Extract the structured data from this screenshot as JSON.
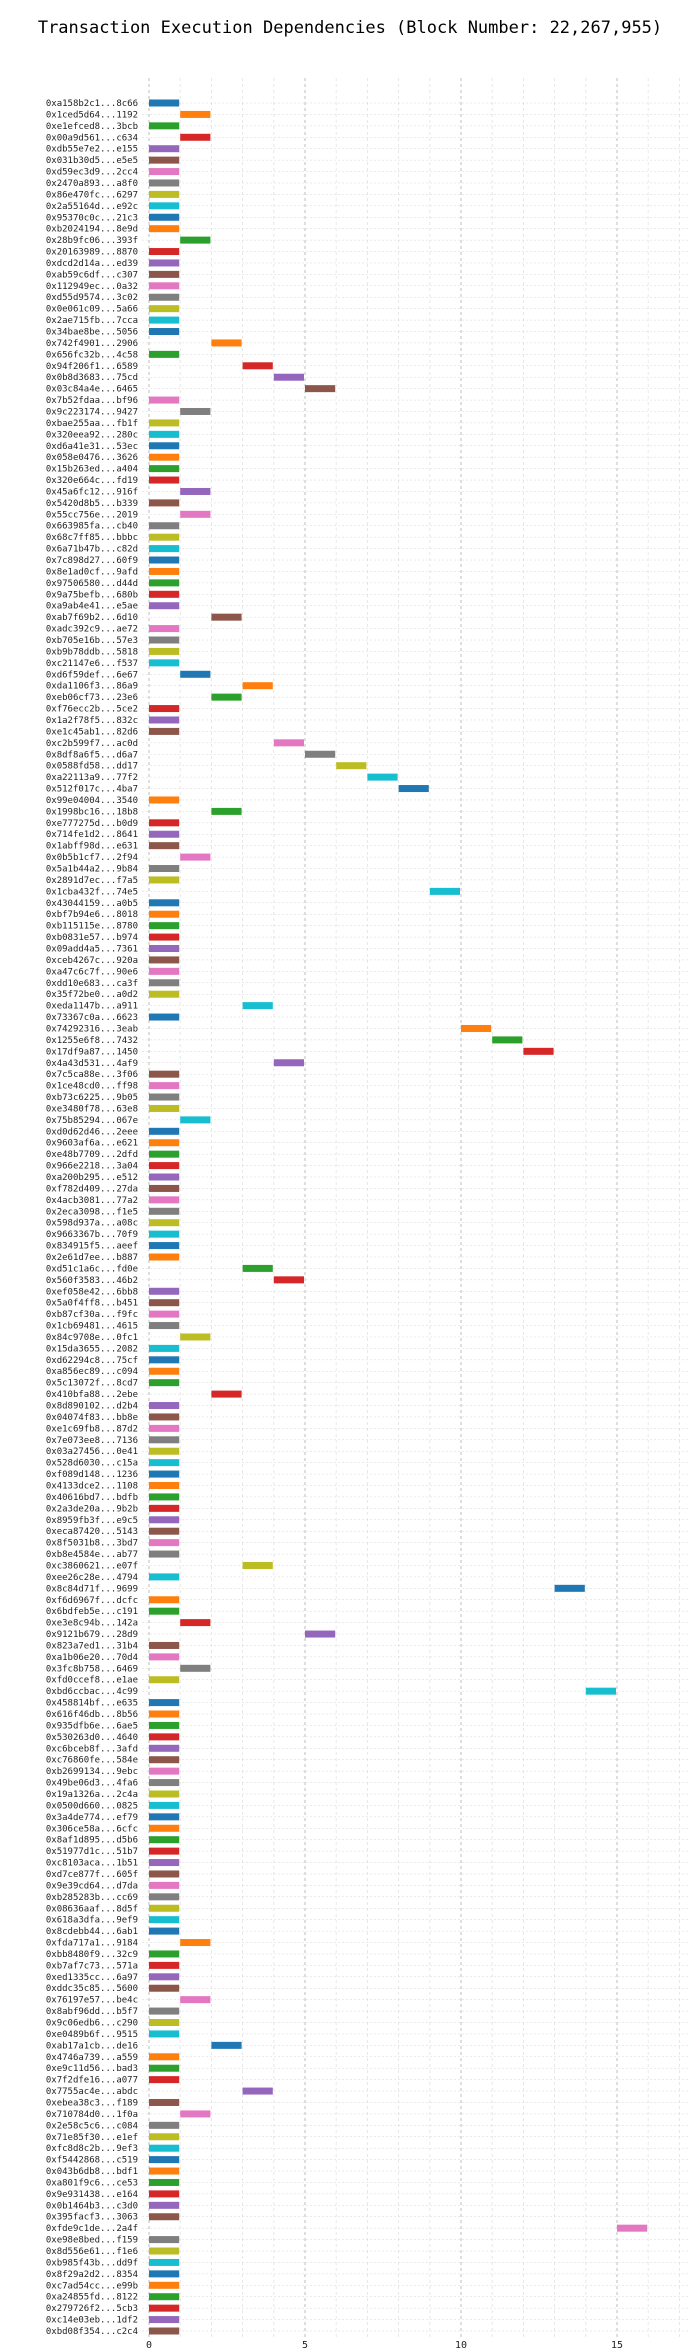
{
  "chart_data": {
    "type": "bar",
    "orientation": "horizontal-gantt",
    "title": "Transaction Execution Dependencies (Block Number: 22,267,955)",
    "xlabel": "",
    "ylabel": "",
    "xlim": [
      0,
      17
    ],
    "x_ticks": [
      0,
      5,
      10,
      15
    ],
    "grid": true,
    "palette": [
      "#1f77b4",
      "#ff7f0e",
      "#2ca02c",
      "#d62728",
      "#9467bd",
      "#8c564b",
      "#e377c2",
      "#7f7f7f",
      "#bcbd22",
      "#17becf"
    ],
    "transactions": [
      {
        "label": "0xa158b2c1...8c66",
        "start": 0,
        "end": 1
      },
      {
        "label": "0x1ced5d64...1192",
        "start": 1,
        "end": 2
      },
      {
        "label": "0xe1efced8...3bcb",
        "start": 0,
        "end": 1
      },
      {
        "label": "0x00a9d561...c634",
        "start": 1,
        "end": 2
      },
      {
        "label": "0xdb55e7e2...e155",
        "start": 0,
        "end": 1
      },
      {
        "label": "0x031b30d5...e5e5",
        "start": 0,
        "end": 1
      },
      {
        "label": "0xd59ec3d9...2cc4",
        "start": 0,
        "end": 1
      },
      {
        "label": "0x2470a893...a8f0",
        "start": 0,
        "end": 1
      },
      {
        "label": "0x86e470fc...6297",
        "start": 0,
        "end": 1
      },
      {
        "label": "0x2a55164d...e92c",
        "start": 0,
        "end": 1
      },
      {
        "label": "0x95370c0c...21c3",
        "start": 0,
        "end": 1
      },
      {
        "label": "0xb2024194...8e9d",
        "start": 0,
        "end": 1
      },
      {
        "label": "0x28b9fc06...393f",
        "start": 1,
        "end": 2
      },
      {
        "label": "0x20163989...8870",
        "start": 0,
        "end": 1
      },
      {
        "label": "0xdcd2d14a...ed39",
        "start": 0,
        "end": 1
      },
      {
        "label": "0xab59c6df...c307",
        "start": 0,
        "end": 1
      },
      {
        "label": "0x112949ec...0a32",
        "start": 0,
        "end": 1
      },
      {
        "label": "0xd55d9574...3c02",
        "start": 0,
        "end": 1
      },
      {
        "label": "0x0e061c09...5a66",
        "start": 0,
        "end": 1
      },
      {
        "label": "0x2ae715fb...7cca",
        "start": 0,
        "end": 1
      },
      {
        "label": "0x34bae8be...5056",
        "start": 0,
        "end": 1
      },
      {
        "label": "0x742f4901...2906",
        "start": 2,
        "end": 3
      },
      {
        "label": "0x656fc32b...4c58",
        "start": 0,
        "end": 1
      },
      {
        "label": "0x94f206f1...6589",
        "start": 3,
        "end": 4
      },
      {
        "label": "0x0b8d3683...75cd",
        "start": 4,
        "end": 5
      },
      {
        "label": "0x03c84a4e...6465",
        "start": 5,
        "end": 6
      },
      {
        "label": "0x7b52fdaa...bf96",
        "start": 0,
        "end": 1
      },
      {
        "label": "0x9c223174...9427",
        "start": 1,
        "end": 2
      },
      {
        "label": "0xbae255aa...fb1f",
        "start": 0,
        "end": 1
      },
      {
        "label": "0x320eea92...280c",
        "start": 0,
        "end": 1
      },
      {
        "label": "0xd6a41e31...53ec",
        "start": 0,
        "end": 1
      },
      {
        "label": "0x058e0476...3626",
        "start": 0,
        "end": 1
      },
      {
        "label": "0x15b263ed...a404",
        "start": 0,
        "end": 1
      },
      {
        "label": "0x320e664c...fd19",
        "start": 0,
        "end": 1
      },
      {
        "label": "0x45a6fc12...916f",
        "start": 1,
        "end": 2
      },
      {
        "label": "0x5420d8b5...b339",
        "start": 0,
        "end": 1
      },
      {
        "label": "0x55cc756e...2019",
        "start": 1,
        "end": 2
      },
      {
        "label": "0x663985fa...cb40",
        "start": 0,
        "end": 1
      },
      {
        "label": "0x68c7ff85...bbbc",
        "start": 0,
        "end": 1
      },
      {
        "label": "0x6a71b47b...c82d",
        "start": 0,
        "end": 1
      },
      {
        "label": "0x7c898d27...60f9",
        "start": 0,
        "end": 1
      },
      {
        "label": "0x8e1ad0cf...9afd",
        "start": 0,
        "end": 1
      },
      {
        "label": "0x97506580...d44d",
        "start": 0,
        "end": 1
      },
      {
        "label": "0x9a75befb...680b",
        "start": 0,
        "end": 1
      },
      {
        "label": "0xa9ab4e41...e5ae",
        "start": 0,
        "end": 1
      },
      {
        "label": "0xab7f69b2...6d10",
        "start": 2,
        "end": 3
      },
      {
        "label": "0xadc392c9...ae72",
        "start": 0,
        "end": 1
      },
      {
        "label": "0xb705e16b...57e3",
        "start": 0,
        "end": 1
      },
      {
        "label": "0xb9b78ddb...5818",
        "start": 0,
        "end": 1
      },
      {
        "label": "0xc21147e6...f537",
        "start": 0,
        "end": 1
      },
      {
        "label": "0xd6f59def...6e67",
        "start": 1,
        "end": 2
      },
      {
        "label": "0xda1106f3...86a9",
        "start": 3,
        "end": 4
      },
      {
        "label": "0xeb06cf73...23e6",
        "start": 2,
        "end": 3
      },
      {
        "label": "0xf76ecc2b...5ce2",
        "start": 0,
        "end": 1
      },
      {
        "label": "0x1a2f78f5...832c",
        "start": 0,
        "end": 1
      },
      {
        "label": "0xe1c45ab1...82d6",
        "start": 0,
        "end": 1
      },
      {
        "label": "0xc2b599f7...ac0d",
        "start": 4,
        "end": 5
      },
      {
        "label": "0x8df8a6f5...d6a7",
        "start": 5,
        "end": 6
      },
      {
        "label": "0x0588fd58...dd17",
        "start": 6,
        "end": 7
      },
      {
        "label": "0xa22113a9...77f2",
        "start": 7,
        "end": 8
      },
      {
        "label": "0x512f017c...4ba7",
        "start": 8,
        "end": 9
      },
      {
        "label": "0x99e04004...3540",
        "start": 0,
        "end": 1
      },
      {
        "label": "0x1998bc16...18b8",
        "start": 2,
        "end": 3
      },
      {
        "label": "0xe777275d...b0d9",
        "start": 0,
        "end": 1
      },
      {
        "label": "0x714fe1d2...8641",
        "start": 0,
        "end": 1
      },
      {
        "label": "0x1abff98d...e631",
        "start": 0,
        "end": 1
      },
      {
        "label": "0x0b5b1cf7...2f94",
        "start": 1,
        "end": 2
      },
      {
        "label": "0x5a1b44a2...9b84",
        "start": 0,
        "end": 1
      },
      {
        "label": "0x2891d7ec...f7a5",
        "start": 0,
        "end": 1
      },
      {
        "label": "0x1cba432f...74e5",
        "start": 9,
        "end": 10
      },
      {
        "label": "0x43044159...a0b5",
        "start": 0,
        "end": 1
      },
      {
        "label": "0xbf7b94e6...8018",
        "start": 0,
        "end": 1
      },
      {
        "label": "0xb115115e...8780",
        "start": 0,
        "end": 1
      },
      {
        "label": "0xb0831e57...b974",
        "start": 0,
        "end": 1
      },
      {
        "label": "0x09add4a5...7361",
        "start": 0,
        "end": 1
      },
      {
        "label": "0xceb4267c...920a",
        "start": 0,
        "end": 1
      },
      {
        "label": "0xa47c6c7f...90e6",
        "start": 0,
        "end": 1
      },
      {
        "label": "0xdd10e683...ca3f",
        "start": 0,
        "end": 1
      },
      {
        "label": "0x35f72be0...a0d2",
        "start": 0,
        "end": 1
      },
      {
        "label": "0xeda1147b...a911",
        "start": 3,
        "end": 4
      },
      {
        "label": "0x73367c0a...6623",
        "start": 0,
        "end": 1
      },
      {
        "label": "0x74292316...3eab",
        "start": 10,
        "end": 11
      },
      {
        "label": "0x1255e6f8...7432",
        "start": 11,
        "end": 12
      },
      {
        "label": "0x17df9a87...1450",
        "start": 12,
        "end": 13
      },
      {
        "label": "0x4a43d531...4af9",
        "start": 4,
        "end": 5
      },
      {
        "label": "0x7c5ca88e...3f06",
        "start": 0,
        "end": 1
      },
      {
        "label": "0x1ce48cd0...ff98",
        "start": 0,
        "end": 1
      },
      {
        "label": "0xb73c6225...9b05",
        "start": 0,
        "end": 1
      },
      {
        "label": "0xe3480f78...63e8",
        "start": 0,
        "end": 1
      },
      {
        "label": "0x75b85294...067e",
        "start": 1,
        "end": 2
      },
      {
        "label": "0xd0d62d46...2eee",
        "start": 0,
        "end": 1
      },
      {
        "label": "0x9603af6a...e621",
        "start": 0,
        "end": 1
      },
      {
        "label": "0xe48b7709...2dfd",
        "start": 0,
        "end": 1
      },
      {
        "label": "0x966e2218...3a04",
        "start": 0,
        "end": 1
      },
      {
        "label": "0xa200b295...e512",
        "start": 0,
        "end": 1
      },
      {
        "label": "0xf782d409...27da",
        "start": 0,
        "end": 1
      },
      {
        "label": "0x4acb3081...77a2",
        "start": 0,
        "end": 1
      },
      {
        "label": "0x2eca3098...f1e5",
        "start": 0,
        "end": 1
      },
      {
        "label": "0x598d937a...a08c",
        "start": 0,
        "end": 1
      },
      {
        "label": "0x9663367b...70f9",
        "start": 0,
        "end": 1
      },
      {
        "label": "0x834915f5...aeef",
        "start": 0,
        "end": 1
      },
      {
        "label": "0x2e61d7ee...b887",
        "start": 0,
        "end": 1
      },
      {
        "label": "0xd51c1a6c...fd0e",
        "start": 3,
        "end": 4
      },
      {
        "label": "0x560f3583...46b2",
        "start": 4,
        "end": 5
      },
      {
        "label": "0xef058e42...6bb8",
        "start": 0,
        "end": 1
      },
      {
        "label": "0x5a0f4ff8...b451",
        "start": 0,
        "end": 1
      },
      {
        "label": "0xb87cf30a...f9fc",
        "start": 0,
        "end": 1
      },
      {
        "label": "0x1cb69481...4615",
        "start": 0,
        "end": 1
      },
      {
        "label": "0x84c9708e...0fc1",
        "start": 1,
        "end": 2
      },
      {
        "label": "0x15da3655...2082",
        "start": 0,
        "end": 1
      },
      {
        "label": "0xd62294c8...75cf",
        "start": 0,
        "end": 1
      },
      {
        "label": "0xa856ec89...c094",
        "start": 0,
        "end": 1
      },
      {
        "label": "0x5c13072f...8cd7",
        "start": 0,
        "end": 1
      },
      {
        "label": "0x410bfa88...2ebe",
        "start": 2,
        "end": 3
      },
      {
        "label": "0x8d890102...d2b4",
        "start": 0,
        "end": 1
      },
      {
        "label": "0x04074f83...bb8e",
        "start": 0,
        "end": 1
      },
      {
        "label": "0xe1c69fb8...87d2",
        "start": 0,
        "end": 1
      },
      {
        "label": "0x7e073ee8...7136",
        "start": 0,
        "end": 1
      },
      {
        "label": "0x03a27456...0e41",
        "start": 0,
        "end": 1
      },
      {
        "label": "0x528d6030...c15a",
        "start": 0,
        "end": 1
      },
      {
        "label": "0xf089d148...1236",
        "start": 0,
        "end": 1
      },
      {
        "label": "0x4133dce2...1108",
        "start": 0,
        "end": 1
      },
      {
        "label": "0x40616bd7...bdfb",
        "start": 0,
        "end": 1
      },
      {
        "label": "0x2a3de20a...9b2b",
        "start": 0,
        "end": 1
      },
      {
        "label": "0x8959fb3f...e9c5",
        "start": 0,
        "end": 1
      },
      {
        "label": "0xeca87420...5143",
        "start": 0,
        "end": 1
      },
      {
        "label": "0x8f5031b8...3bd7",
        "start": 0,
        "end": 1
      },
      {
        "label": "0xb8e4584e...ab77",
        "start": 0,
        "end": 1
      },
      {
        "label": "0xc3860621...e07f",
        "start": 3,
        "end": 4
      },
      {
        "label": "0xee26c28e...4794",
        "start": 0,
        "end": 1
      },
      {
        "label": "0x8c84d71f...9699",
        "start": 13,
        "end": 14
      },
      {
        "label": "0xf6d6967f...dcfc",
        "start": 0,
        "end": 1
      },
      {
        "label": "0x6bdfeb5e...c191",
        "start": 0,
        "end": 1
      },
      {
        "label": "0xe3e8c94b...142a",
        "start": 1,
        "end": 2
      },
      {
        "label": "0x9121b679...28d9",
        "start": 5,
        "end": 6
      },
      {
        "label": "0x823a7ed1...31b4",
        "start": 0,
        "end": 1
      },
      {
        "label": "0xa1b06e20...70d4",
        "start": 0,
        "end": 1
      },
      {
        "label": "0x3fc8b758...6469",
        "start": 1,
        "end": 2
      },
      {
        "label": "0xfd0ccef8...e1ae",
        "start": 0,
        "end": 1
      },
      {
        "label": "0xbd6ccbac...4c99",
        "start": 14,
        "end": 15
      },
      {
        "label": "0x458814bf...e635",
        "start": 0,
        "end": 1
      },
      {
        "label": "0x616f46db...8b56",
        "start": 0,
        "end": 1
      },
      {
        "label": "0x935dfb6e...6ae5",
        "start": 0,
        "end": 1
      },
      {
        "label": "0x530263d0...4640",
        "start": 0,
        "end": 1
      },
      {
        "label": "0xc6bceb8f...3afd",
        "start": 0,
        "end": 1
      },
      {
        "label": "0xc76860fe...584e",
        "start": 0,
        "end": 1
      },
      {
        "label": "0xb2699134...9ebc",
        "start": 0,
        "end": 1
      },
      {
        "label": "0x49be06d3...4fa6",
        "start": 0,
        "end": 1
      },
      {
        "label": "0x19a1326a...2c4a",
        "start": 0,
        "end": 1
      },
      {
        "label": "0x0500d660...0825",
        "start": 0,
        "end": 1
      },
      {
        "label": "0x3a4de774...ef79",
        "start": 0,
        "end": 1
      },
      {
        "label": "0x306ce58a...6cfc",
        "start": 0,
        "end": 1
      },
      {
        "label": "0x8af1d895...d5b6",
        "start": 0,
        "end": 1
      },
      {
        "label": "0x51977d1c...51b7",
        "start": 0,
        "end": 1
      },
      {
        "label": "0xc8103aca...1b51",
        "start": 0,
        "end": 1
      },
      {
        "label": "0xd7ce877f...605f",
        "start": 0,
        "end": 1
      },
      {
        "label": "0x9e39cd64...d7da",
        "start": 0,
        "end": 1
      },
      {
        "label": "0xb285283b...cc69",
        "start": 0,
        "end": 1
      },
      {
        "label": "0x08636aaf...8d5f",
        "start": 0,
        "end": 1
      },
      {
        "label": "0x618a3dfa...9ef9",
        "start": 0,
        "end": 1
      },
      {
        "label": "0x8cdebb44...6ab1",
        "start": 0,
        "end": 1
      },
      {
        "label": "0xfda717a1...9184",
        "start": 1,
        "end": 2
      },
      {
        "label": "0xbb8480f9...32c9",
        "start": 0,
        "end": 1
      },
      {
        "label": "0xb7af7c73...571a",
        "start": 0,
        "end": 1
      },
      {
        "label": "0xed1335cc...6a97",
        "start": 0,
        "end": 1
      },
      {
        "label": "0xddc35c85...5600",
        "start": 0,
        "end": 1
      },
      {
        "label": "0x76197e57...be4c",
        "start": 1,
        "end": 2
      },
      {
        "label": "0x8abf96dd...b5f7",
        "start": 0,
        "end": 1
      },
      {
        "label": "0x9c06edb6...c290",
        "start": 0,
        "end": 1
      },
      {
        "label": "0xe0489b6f...9515",
        "start": 0,
        "end": 1
      },
      {
        "label": "0xab17a1cb...de16",
        "start": 2,
        "end": 3
      },
      {
        "label": "0x4746a739...a559",
        "start": 0,
        "end": 1
      },
      {
        "label": "0xe9c11d56...bad3",
        "start": 0,
        "end": 1
      },
      {
        "label": "0x7f2dfe16...a077",
        "start": 0,
        "end": 1
      },
      {
        "label": "0x7755ac4e...abdc",
        "start": 3,
        "end": 4
      },
      {
        "label": "0xebea38c3...f189",
        "start": 0,
        "end": 1
      },
      {
        "label": "0x710784d0...1f0a",
        "start": 1,
        "end": 2
      },
      {
        "label": "0x2e58c5c6...c084",
        "start": 0,
        "end": 1
      },
      {
        "label": "0x71e85f30...e1ef",
        "start": 0,
        "end": 1
      },
      {
        "label": "0xfc8d8c2b...9ef3",
        "start": 0,
        "end": 1
      },
      {
        "label": "0xf5442868...c519",
        "start": 0,
        "end": 1
      },
      {
        "label": "0x043b6db8...bdf1",
        "start": 0,
        "end": 1
      },
      {
        "label": "0xa801f9c6...ce53",
        "start": 0,
        "end": 1
      },
      {
        "label": "0x9e931438...e164",
        "start": 0,
        "end": 1
      },
      {
        "label": "0x0b1464b3...c3d0",
        "start": 0,
        "end": 1
      },
      {
        "label": "0x395facf3...3063",
        "start": 0,
        "end": 1
      },
      {
        "label": "0xfde9c1de...2a4f",
        "start": 15,
        "end": 16
      },
      {
        "label": "0xe98e8bed...f159",
        "start": 0,
        "end": 1
      },
      {
        "label": "0x8d556e61...f1e6",
        "start": 0,
        "end": 1
      },
      {
        "label": "0xb985f43b...dd9f",
        "start": 0,
        "end": 1
      },
      {
        "label": "0x8f29a2d2...8354",
        "start": 0,
        "end": 1
      },
      {
        "label": "0xc7ad54cc...e99b",
        "start": 0,
        "end": 1
      },
      {
        "label": "0xa24855fd...8122",
        "start": 0,
        "end": 1
      },
      {
        "label": "0x279726f2...5cb3",
        "start": 0,
        "end": 1
      },
      {
        "label": "0xc14e03eb...1df2",
        "start": 0,
        "end": 1
      },
      {
        "label": "0xbd08f354...c2c4",
        "start": 0,
        "end": 1
      }
    ]
  }
}
